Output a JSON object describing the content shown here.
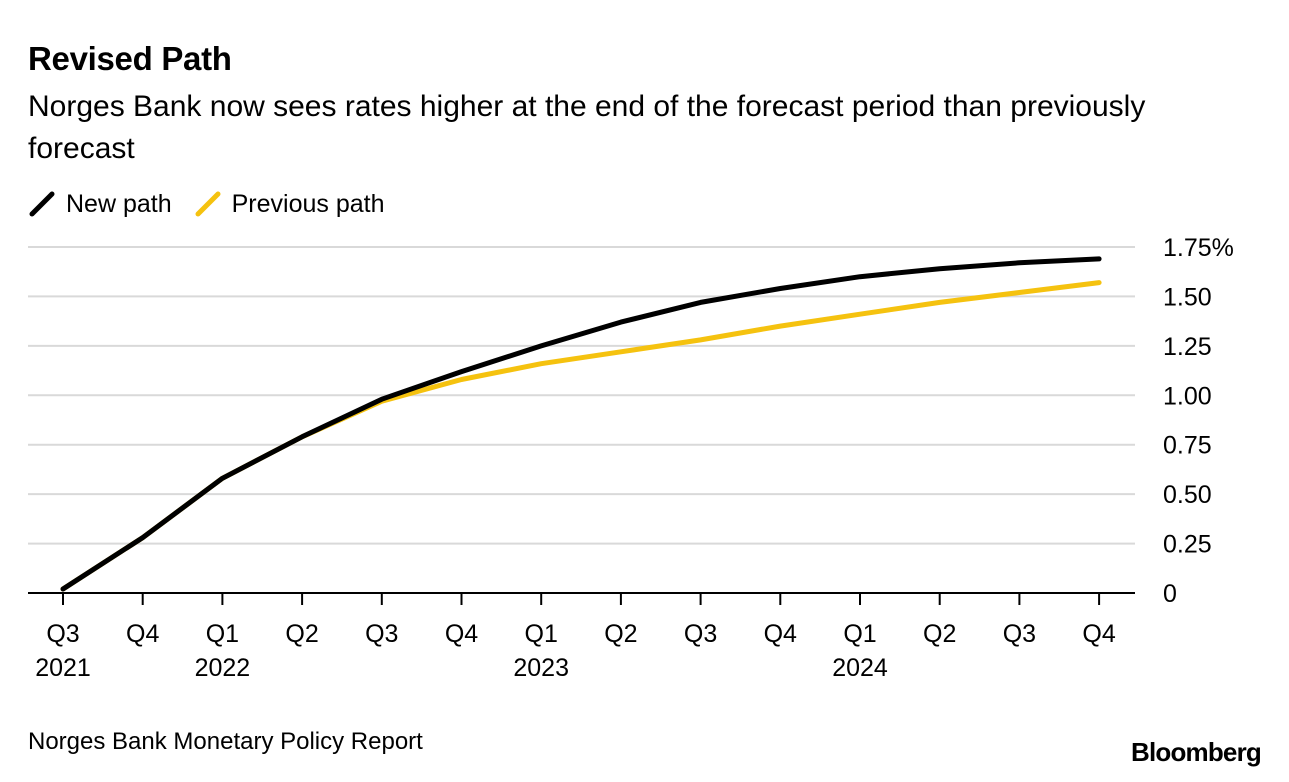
{
  "header": {
    "title": "Revised Path",
    "subtitle": "Norges Bank now sees rates higher at the end of the forecast period than previously forecast"
  },
  "footer": {
    "source": "Norges Bank Monetary Policy Report",
    "brand": "Bloomberg"
  },
  "colors": {
    "new_path": "#000000",
    "previous_path": "#f5c20f",
    "gridline": "#d9d9d9",
    "axis": "#000000"
  },
  "chart_data": {
    "type": "line",
    "title": "Revised Path",
    "subtitle": "Norges Bank now sees rates higher at the end of the forecast period than previously forecast",
    "xlabel": "",
    "ylabel": "",
    "ylim": [
      0,
      1.75
    ],
    "yticks": [
      0,
      0.25,
      0.5,
      0.75,
      1.0,
      1.25,
      1.5,
      1.75
    ],
    "ytick_labels": [
      "0",
      "0.25",
      "0.50",
      "0.75",
      "1.00",
      "1.25",
      "1.50",
      "1.75%"
    ],
    "categories": [
      "Q3",
      "Q4",
      "Q1",
      "Q2",
      "Q3",
      "Q4",
      "Q1",
      "Q2",
      "Q3",
      "Q4",
      "Q1",
      "Q2",
      "Q3",
      "Q4"
    ],
    "year_labels": [
      {
        "index": 0,
        "label": "2021"
      },
      {
        "index": 2,
        "label": "2022"
      },
      {
        "index": 6,
        "label": "2023"
      },
      {
        "index": 10,
        "label": "2024"
      }
    ],
    "grid": true,
    "legend": "top-left",
    "series": [
      {
        "name": "New path",
        "color": "#000000",
        "values": [
          0.02,
          0.28,
          0.58,
          0.79,
          0.98,
          1.12,
          1.25,
          1.37,
          1.47,
          1.54,
          1.6,
          1.64,
          1.67,
          1.69
        ]
      },
      {
        "name": "Previous path",
        "color": "#f5c20f",
        "values": [
          0.02,
          0.28,
          0.58,
          0.79,
          0.97,
          1.08,
          1.16,
          1.22,
          1.28,
          1.35,
          1.41,
          1.47,
          1.52,
          1.57
        ]
      }
    ]
  }
}
